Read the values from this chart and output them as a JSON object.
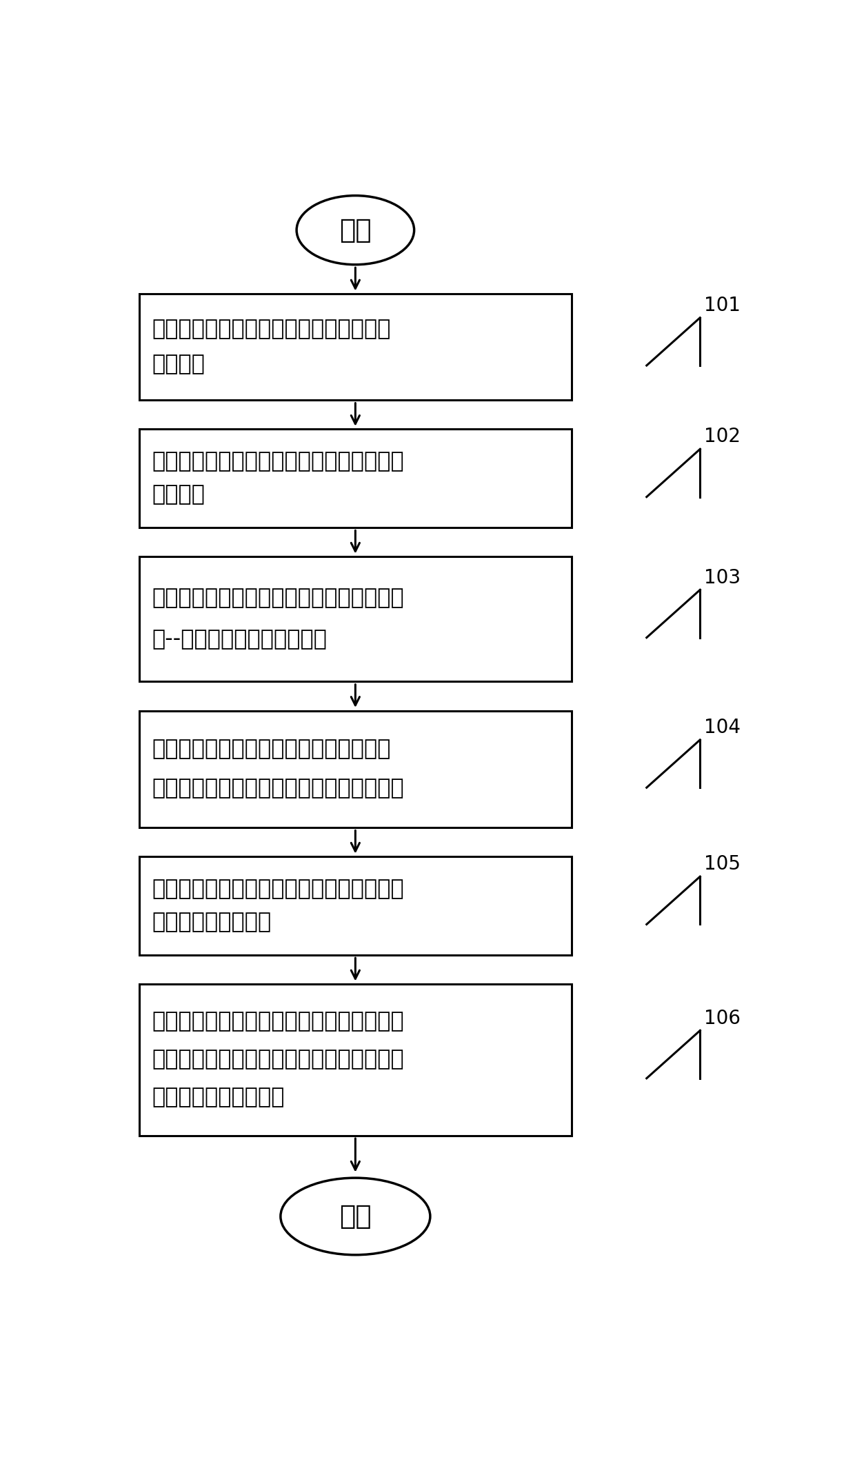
{
  "bg_color": "#ffffff",
  "line_color": "#000000",
  "text_color": "#000000",
  "start_text": "开始",
  "end_text": "结束",
  "boxes": [
    {
      "label": "101",
      "text_line1": "用户终端向所属小区的目的服务基站发送",
      "text_line2": "导频符号",
      "text_line3": ""
    },
    {
      "label": "102",
      "text_line1": "服务基站的相邻基站根据导频信号强度确定",
      "text_line2": "受扰基站",
      "text_line3": ""
    },
    {
      "label": "103",
      "text_line1": "目的基站和受扰基站根据导频信号估计出用",
      "text_line2": "户--基站之间的信道状态信息",
      "text_line3": ""
    },
    {
      "label": "104",
      "text_line1": "目的基站利用信道估计値检测出该用户信",
      "text_line2": "号，并解调、译码后得到用户的信息比特流",
      "text_line3": ""
    },
    {
      "label": "105",
      "text_line1": "目的服务基站端利用骨干网络把用户信息比",
      "text_line2": "特传送到受扰基站端",
      "text_line3": ""
    },
    {
      "label": "106",
      "text_line1": "受扰基站端对接收的用户比特流编码调制得",
      "text_line2": "到干扰信号，并从其接收信号减去干扰信号",
      "text_line3": "后，再恢复信息比特流"
    }
  ]
}
